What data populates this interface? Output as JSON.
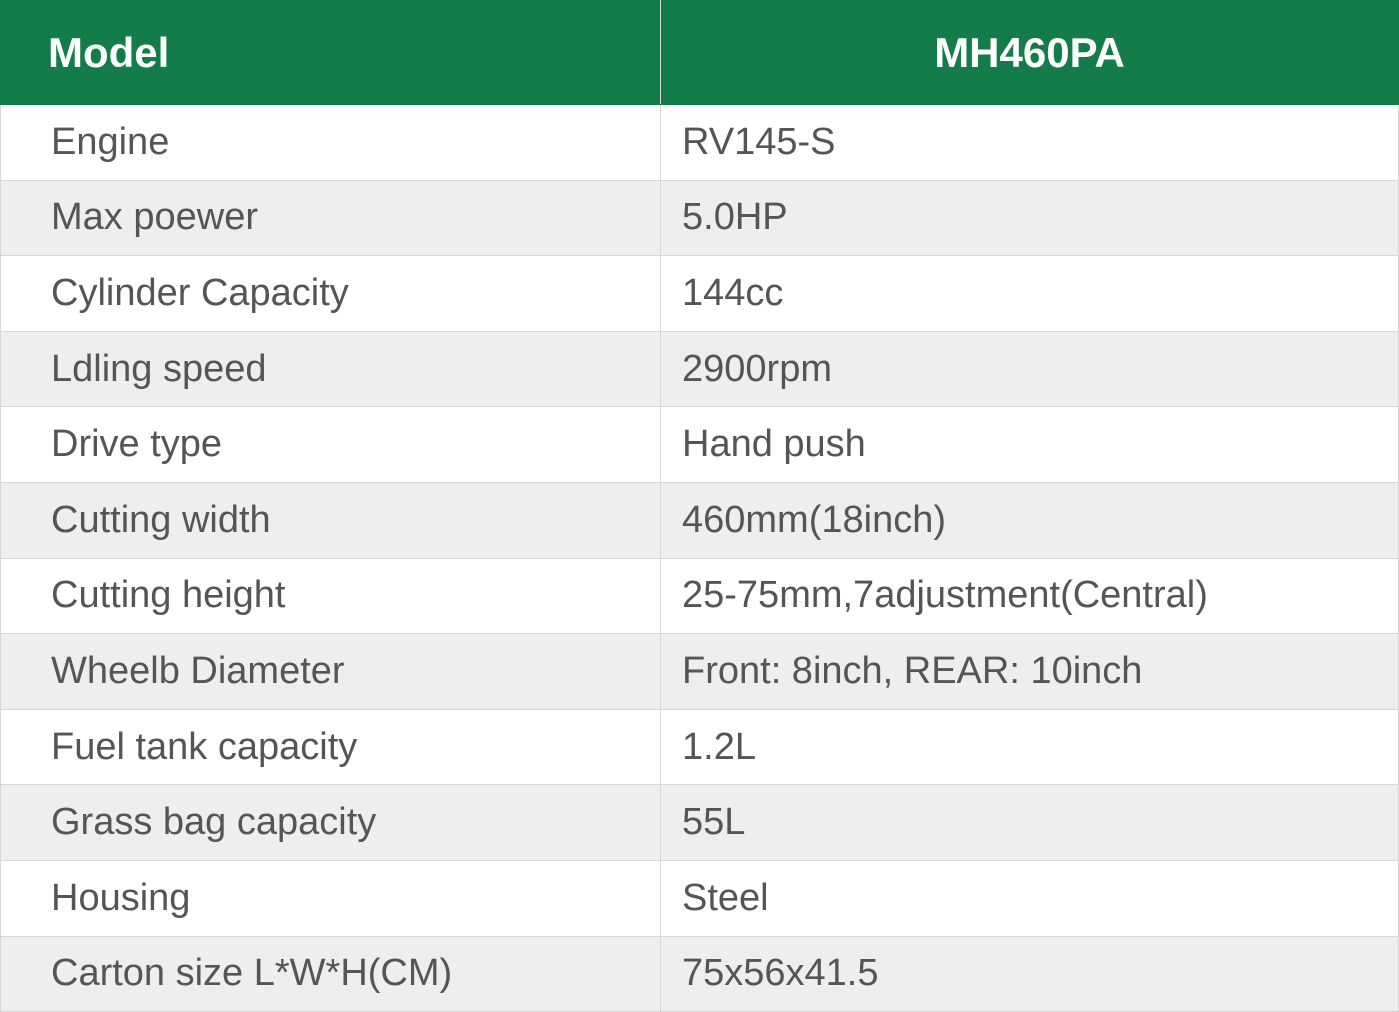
{
  "header": {
    "label": "Model",
    "value": "MH460PA"
  },
  "rows": [
    {
      "label": "Engine",
      "value": "RV145-S"
    },
    {
      "label": "Max poewer",
      "value": "5.0HP"
    },
    {
      "label": "Cylinder Capacity",
      "value": "144cc"
    },
    {
      "label": "Ldling speed",
      "value": "2900rpm"
    },
    {
      "label": "Drive type",
      "value": "Hand push"
    },
    {
      "label": "Cutting width",
      "value": "460mm(18inch)"
    },
    {
      "label": "Cutting height",
      "value": "25-75mm,7adjustment(Central)"
    },
    {
      "label": "Wheelb Diameter",
      "value": "Front: 8inch, REAR: 10inch"
    },
    {
      "label": "Fuel tank capacity",
      "value": "1.2L"
    },
    {
      "label": "Grass bag capacity",
      "value": "55L"
    },
    {
      "label": "Housing",
      "value": "Steel"
    },
    {
      "label": "Carton size L*W*H(CM)",
      "value": "75x56x41.5"
    }
  ],
  "colors": {
    "header_bg": "#137c48",
    "alt_row": "#eeeeee",
    "text": "#555555"
  }
}
